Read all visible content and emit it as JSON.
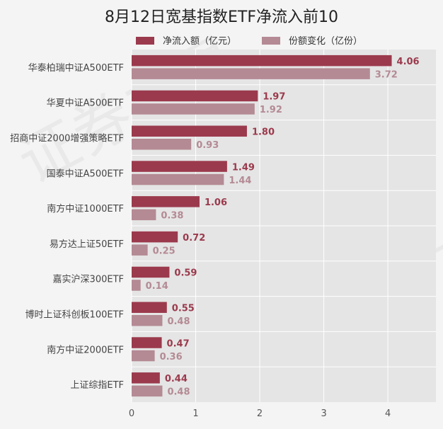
{
  "chart_data": {
    "type": "bar",
    "orientation": "horizontal",
    "title": "8月12日宽基指数ETF净流入前10",
    "categories": [
      "华泰柏瑞中证A500ETF",
      "华夏中证A500ETF",
      "招商中证2000增强策略ETF",
      "国泰中证A500ETF",
      "南方中证1000ETF",
      "易方达上证50ETF",
      "嘉实沪深300ETF",
      "博时上证科创板100ETF",
      "南方中证2000ETF",
      "上证综指ETF"
    ],
    "series": [
      {
        "name": "净流入额（亿元）",
        "color": "#9b3a4d",
        "values": [
          4.06,
          1.97,
          1.8,
          1.49,
          1.06,
          0.72,
          0.59,
          0.55,
          0.47,
          0.44
        ],
        "labels": [
          "4.06",
          "1.97",
          "1.80",
          "1.49",
          "1.06",
          "0.72",
          "0.59",
          "0.55",
          "0.47",
          "0.44"
        ]
      },
      {
        "name": "份额变化（亿份）",
        "color": "#b48a94",
        "values": [
          3.72,
          1.92,
          0.93,
          1.44,
          0.38,
          0.25,
          0.14,
          0.48,
          0.36,
          0.48
        ],
        "labels": [
          "3.72",
          "1.92",
          "0.93",
          "1.44",
          "0.38",
          "0.25",
          "0.14",
          "0.48",
          "0.36",
          "0.48"
        ]
      }
    ],
    "xlim": [
      0,
      4.75
    ],
    "xticks": [
      "0",
      "1",
      "2",
      "3",
      "4"
    ],
    "grid": true,
    "legend_position": "top"
  },
  "watermark": "证券之星"
}
